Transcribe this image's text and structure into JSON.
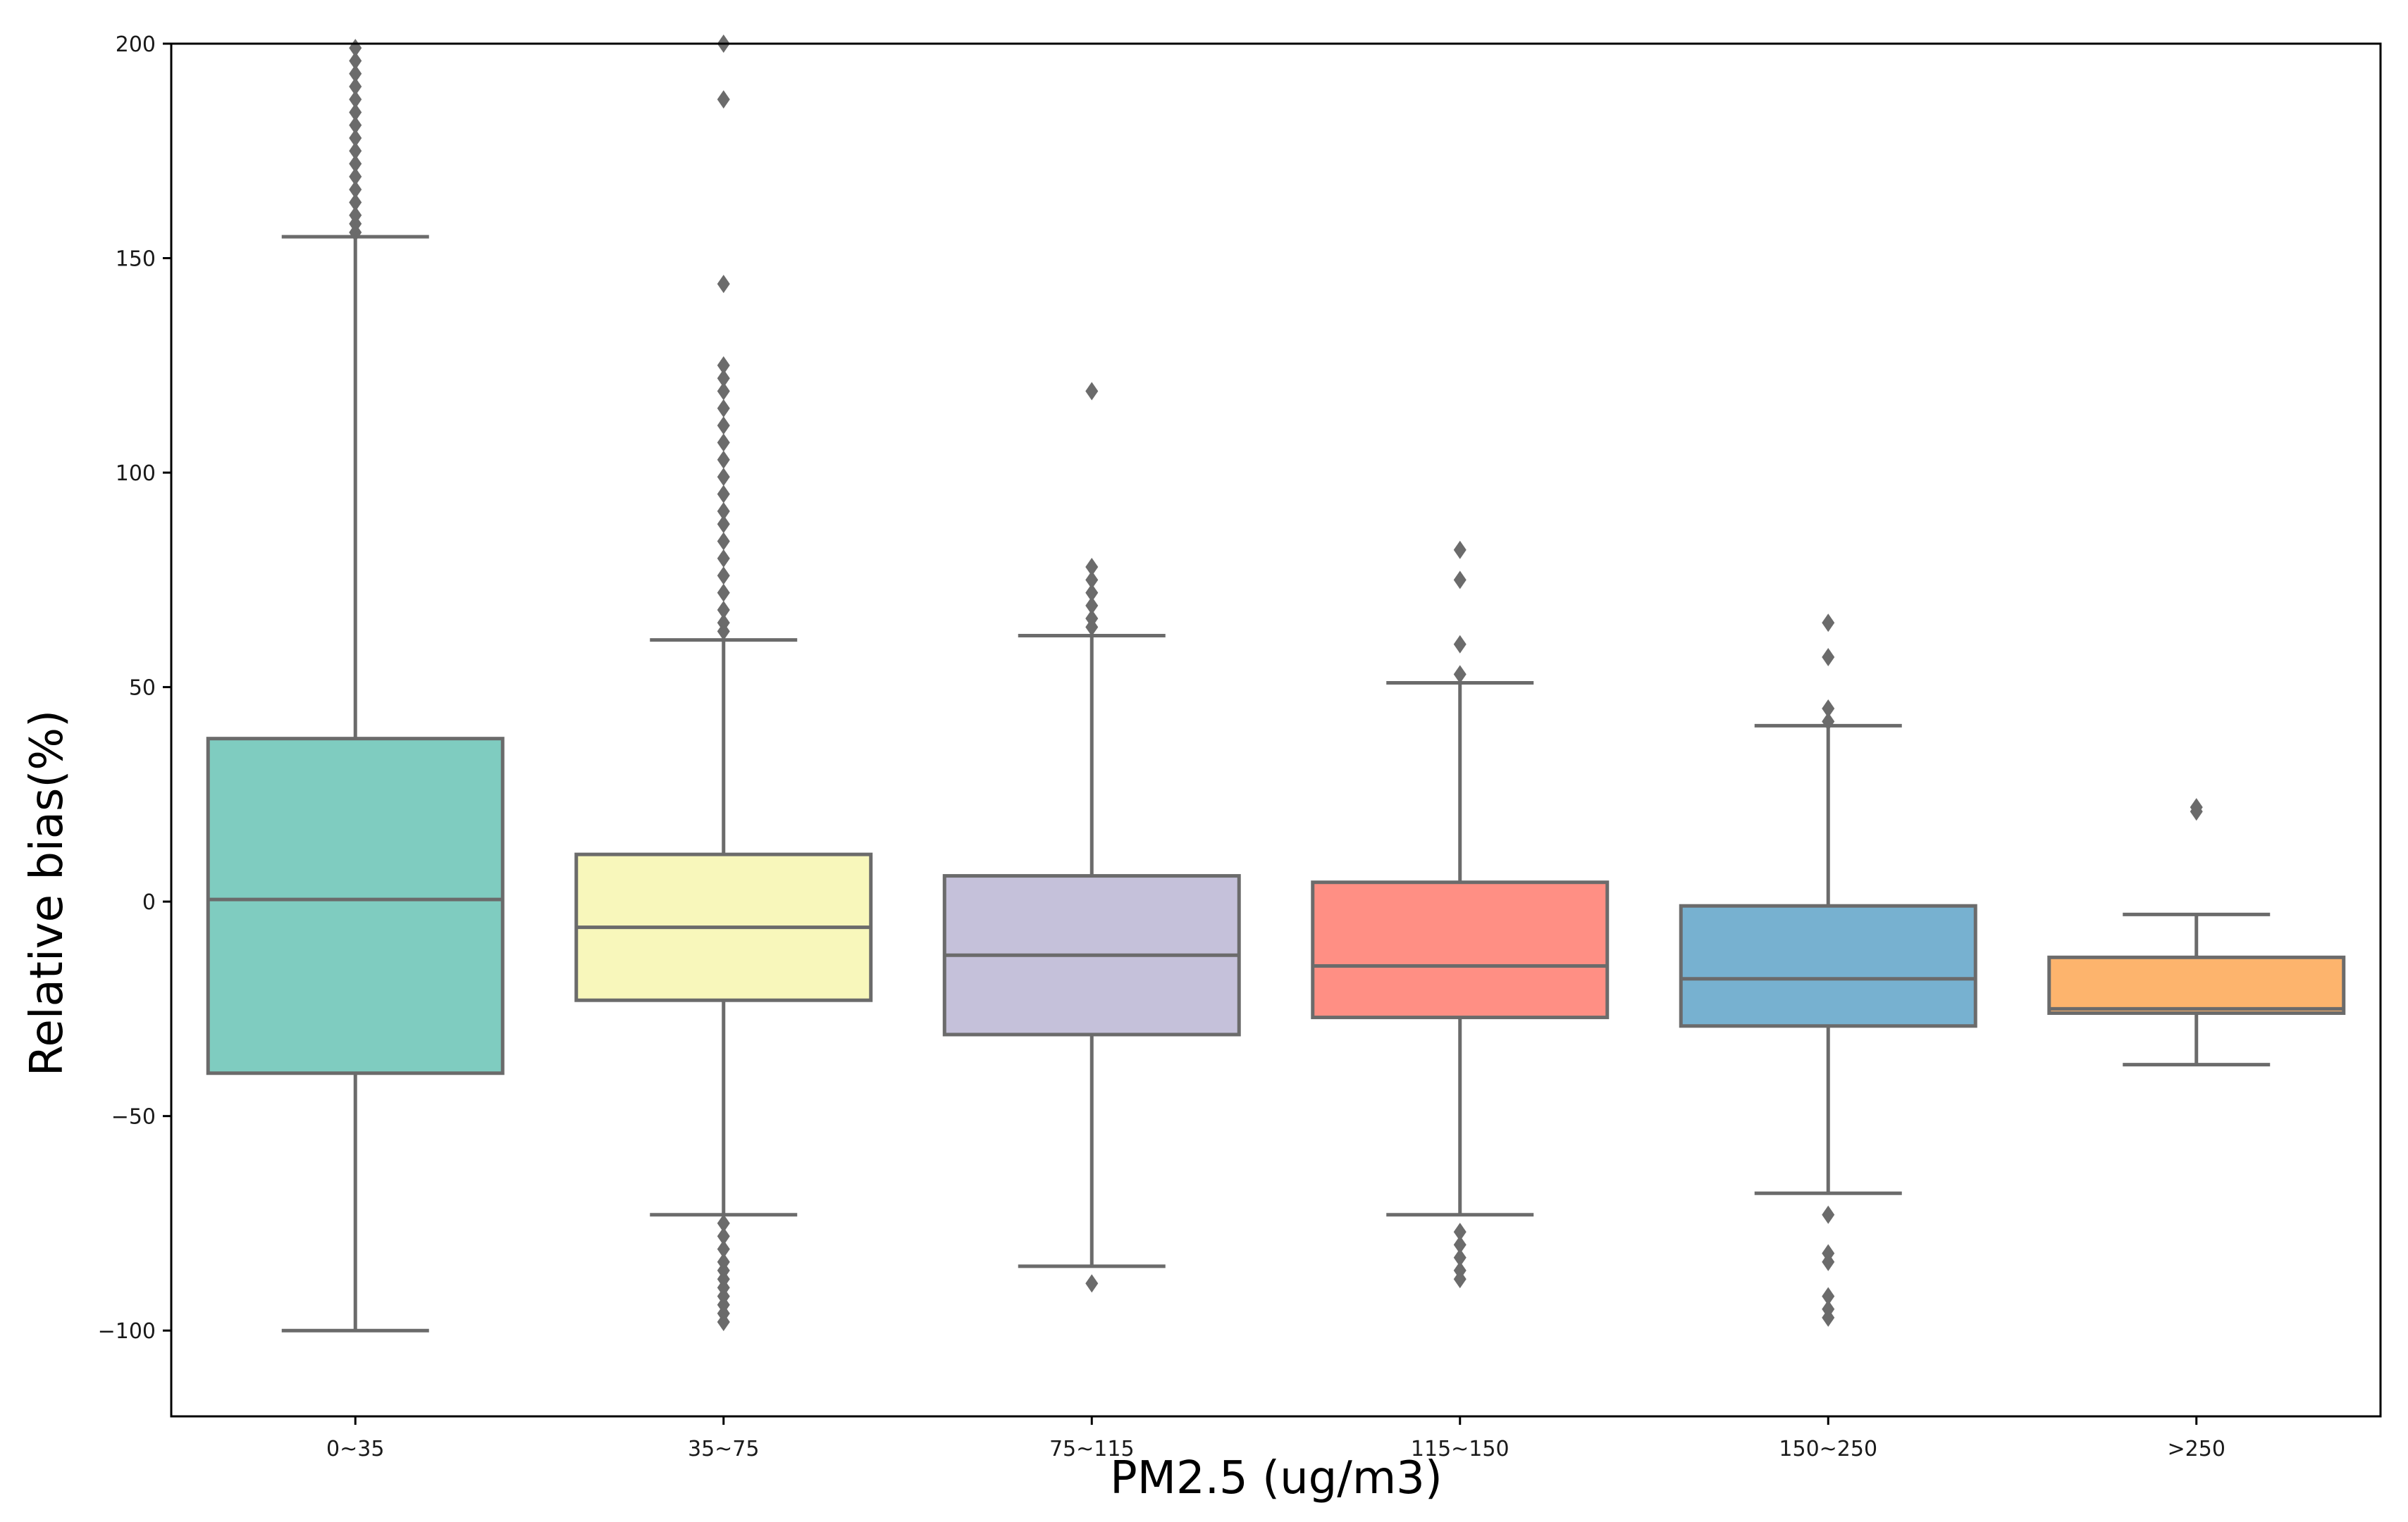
{
  "chart_data": {
    "type": "box",
    "title": "",
    "xlabel": "PM2.5 (ug/m3)",
    "ylabel": "Relative bias(%)",
    "ylim": [
      -120,
      200
    ],
    "yticks": [
      -100,
      -50,
      0,
      50,
      100,
      150,
      200
    ],
    "ytick_labels": [
      "−100",
      "−50",
      "0",
      "50",
      "100",
      "150",
      "200"
    ],
    "categories": [
      "0~35",
      "35~75",
      "75~115",
      "115~150",
      "150~250",
      ">250"
    ],
    "grid": false,
    "colors": {
      "whisker": "#6b6b6b",
      "axis": "#000000",
      "boxes": [
        "#7fccc0",
        "#f8f7bb",
        "#c5c1da",
        "#ff8f84",
        "#77b1d0",
        "#fdb46d"
      ]
    },
    "boxes": [
      {
        "category": "0~35",
        "whisker_low": -100,
        "q1": -40,
        "median": 0.5,
        "q3": 38,
        "whisker_high": 155,
        "outliers": [
          156,
          158,
          160,
          163,
          166,
          169,
          172,
          175,
          178,
          181,
          184,
          187,
          190,
          193,
          196,
          199
        ]
      },
      {
        "category": "35~75",
        "whisker_low": -73,
        "q1": -23,
        "median": -6,
        "q3": 11,
        "whisker_high": 61,
        "outliers": [
          63,
          65,
          68,
          72,
          76,
          80,
          84,
          88,
          91,
          95,
          99,
          103,
          107,
          111,
          115,
          119,
          122,
          125,
          144,
          187,
          200,
          -75,
          -78,
          -81,
          -84,
          -86,
          -88,
          -90,
          -92,
          -94,
          -96,
          -98
        ]
      },
      {
        "category": "75~115",
        "whisker_low": -85,
        "q1": -31,
        "median": -12.5,
        "q3": 6,
        "whisker_high": 62,
        "outliers": [
          64,
          66,
          69,
          72,
          75,
          78,
          119,
          -89
        ]
      },
      {
        "category": "115~150",
        "whisker_low": -73,
        "q1": -27,
        "median": -15,
        "q3": 4.5,
        "whisker_high": 51,
        "outliers": [
          53,
          60,
          75,
          82,
          -77,
          -80,
          -83,
          -86,
          -88
        ]
      },
      {
        "category": "150~250",
        "whisker_low": -68,
        "q1": -29,
        "median": -18,
        "q3": -1,
        "whisker_high": 41,
        "outliers": [
          42,
          45,
          57,
          65,
          -73,
          -82,
          -84,
          -92,
          -95,
          -97
        ]
      },
      {
        "category": ">250",
        "whisker_low": -38,
        "q1": -26,
        "median": -25,
        "q3": -13,
        "whisker_high": -3,
        "outliers": [
          21,
          22
        ]
      }
    ]
  }
}
